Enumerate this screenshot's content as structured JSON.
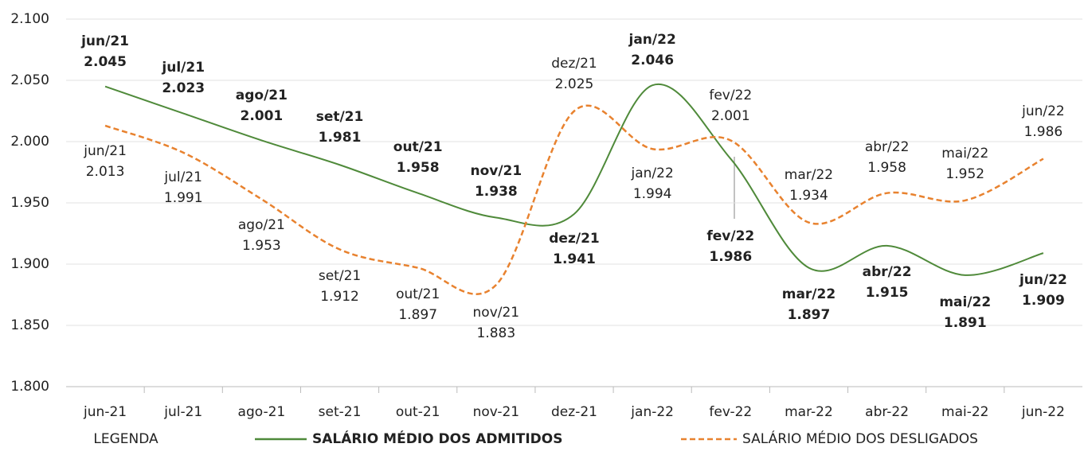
{
  "chart_data": {
    "type": "line",
    "categories": [
      "jun-21",
      "jul-21",
      "ago-21",
      "set-21",
      "out-21",
      "nov-21",
      "dez-21",
      "jan-22",
      "fev-22",
      "mar-22",
      "abr-22",
      "mai-22",
      "jun-22"
    ],
    "ylim": [
      1800,
      2100
    ],
    "yticks": [
      {
        "value": 1800,
        "label": "1.800"
      },
      {
        "value": 1850,
        "label": "1.850"
      },
      {
        "value": 1900,
        "label": "1.900"
      },
      {
        "value": 1950,
        "label": "1.950"
      },
      {
        "value": 2000,
        "label": "2.000"
      },
      {
        "value": 2050,
        "label": "2.050"
      },
      {
        "value": 2100,
        "label": "2.100"
      }
    ],
    "grid": true,
    "legend_title": "LEGENDA",
    "legend": "bottom",
    "series": [
      {
        "name": "SALÁRIO MÉDIO DOS ADMITIDOS",
        "color": "#4f8a3a",
        "dashed": false,
        "values": [
          2045,
          2023,
          2001,
          1981,
          1958,
          1938,
          1941,
          2046,
          1986,
          1897,
          1915,
          1891,
          1909
        ],
        "value_labels": [
          "2.045",
          "2.023",
          "2.001",
          "1.981",
          "1.958",
          "1.938",
          "1.941",
          "2.046",
          "1.986",
          "1.897",
          "1.915",
          "1.891",
          "1.909"
        ],
        "point_names": [
          "jun/21",
          "jul/21",
          "ago/21",
          "set/21",
          "out/21",
          "nov/21",
          "dez/21",
          "jan/22",
          "fev/22",
          "mar/22",
          "abr/22",
          "mai/22",
          "jun/22"
        ]
      },
      {
        "name": "SALÁRIO MÉDIO DOS DESLIGADOS",
        "color": "#e8822f",
        "dashed": true,
        "values": [
          2013,
          1991,
          1953,
          1912,
          1897,
          1883,
          2025,
          1994,
          2001,
          1934,
          1958,
          1952,
          1986
        ],
        "value_labels": [
          "2.013",
          "1.991",
          "1.953",
          "1.912",
          "1.897",
          "1.883",
          "2.025",
          "1.994",
          "2.001",
          "1.934",
          "1.958",
          "1.952",
          "1.986"
        ],
        "point_names": [
          "jun/21",
          "jul/21",
          "ago/21",
          "set/21",
          "out/21",
          "nov/21",
          "dez/21",
          "jan/22",
          "fev/22",
          "mar/22",
          "abr/22",
          "mai/22",
          "jun/22"
        ]
      }
    ]
  }
}
